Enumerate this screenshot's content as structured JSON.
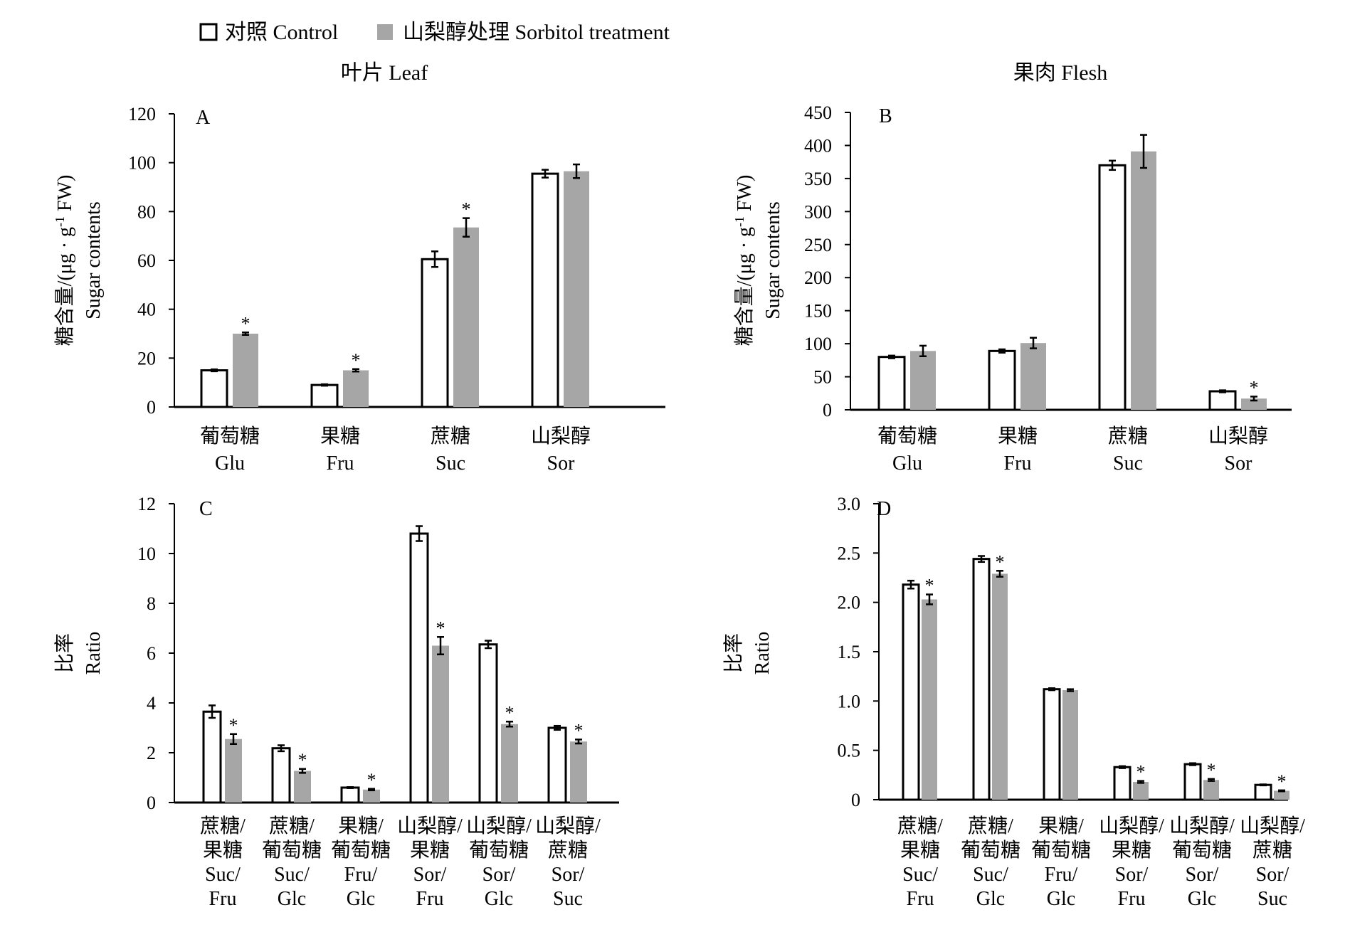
{
  "legend": {
    "control_label": "对照 Control",
    "treatment_label": "山梨醇处理 Sorbitol treatment"
  },
  "colors": {
    "control_fill": "#ffffff",
    "treatment_fill": "#a6a6a6",
    "axis": "#000000"
  },
  "chart_data": [
    {
      "id": "A",
      "type": "bar",
      "title": "叶片 Leaf",
      "panel_label": "A",
      "ylabel_cn": "糖含量/(μg · g",
      "ylabel_sup": "-1",
      "ylabel_tail": " FW)",
      "ylabel_en": "Sugar contents",
      "ylim": [
        0,
        120
      ],
      "yticks": [
        "0",
        "20",
        "40",
        "60",
        "80",
        "100",
        "120"
      ],
      "categories": [
        {
          "lines": [
            "葡萄糖",
            "Glu"
          ]
        },
        {
          "lines": [
            "果糖",
            "Fru"
          ]
        },
        {
          "lines": [
            "蔗糖",
            "Suc"
          ]
        },
        {
          "lines": [
            "山梨醇",
            "Sor"
          ]
        }
      ],
      "series": [
        {
          "name": "对照 Control",
          "values": [
            15,
            9,
            60.5,
            95.5
          ],
          "errors": [
            0.4,
            0.3,
            3.2,
            1.6
          ],
          "sig": [
            false,
            false,
            false,
            false
          ]
        },
        {
          "name": "山梨醇处理 Sorbitol treatment",
          "values": [
            30,
            15,
            73.5,
            96.5
          ],
          "errors": [
            0.5,
            0.5,
            3.8,
            2.8
          ],
          "sig": [
            true,
            true,
            true,
            false
          ]
        }
      ]
    },
    {
      "id": "B",
      "type": "bar",
      "title": "果肉 Flesh",
      "panel_label": "B",
      "ylabel_cn": "糖含量/(μg · g",
      "ylabel_sup": "-1",
      "ylabel_tail": " FW)",
      "ylabel_en": "Sugar contents",
      "ylim": [
        0,
        450
      ],
      "yticks": [
        "0",
        "50",
        "100",
        "150",
        "200",
        "250",
        "300",
        "350",
        "400",
        "450"
      ],
      "categories": [
        {
          "lines": [
            "葡萄糖",
            "Glu"
          ]
        },
        {
          "lines": [
            "果糖",
            "Fru"
          ]
        },
        {
          "lines": [
            "蔗糖",
            "Suc"
          ]
        },
        {
          "lines": [
            "山梨醇",
            "Sor"
          ]
        }
      ],
      "series": [
        {
          "name": "对照 Control",
          "values": [
            80,
            89,
            370,
            28
          ],
          "errors": [
            2,
            2.5,
            7,
            1.5
          ],
          "sig": [
            false,
            false,
            false,
            false
          ]
        },
        {
          "name": "山梨醇处理 Sorbitol treatment",
          "values": [
            89,
            101,
            391,
            17
          ],
          "errors": [
            8,
            8,
            25,
            3
          ],
          "sig": [
            false,
            false,
            false,
            true
          ]
        }
      ]
    },
    {
      "id": "C",
      "type": "bar",
      "title": "",
      "panel_label": "C",
      "ylabel_cn": "比率",
      "ylabel_sup": "",
      "ylabel_tail": "",
      "ylabel_en": "Ratio",
      "ylim": [
        0,
        12
      ],
      "yticks": [
        "0",
        "2",
        "4",
        "6",
        "8",
        "10",
        "12"
      ],
      "categories": [
        {
          "lines": [
            "蔗糖/",
            "果糖",
            "Suc/",
            "Fru"
          ]
        },
        {
          "lines": [
            "蔗糖/",
            "葡萄糖",
            "Suc/",
            "Glc"
          ]
        },
        {
          "lines": [
            "果糖/",
            "葡萄糖",
            "Fru/",
            "Glc"
          ]
        },
        {
          "lines": [
            "山梨醇/",
            "果糖",
            "Sor/",
            "Fru"
          ]
        },
        {
          "lines": [
            "山梨醇/",
            "葡萄糖",
            "Sor/",
            "Glc"
          ]
        },
        {
          "lines": [
            "山梨醇/",
            "蔗糖",
            "Sor/",
            "Suc"
          ]
        }
      ],
      "series": [
        {
          "name": "对照 Control",
          "values": [
            3.65,
            2.18,
            0.6,
            10.8,
            6.35,
            3.0
          ],
          "errors": [
            0.25,
            0.12,
            0.02,
            0.3,
            0.15,
            0.08
          ],
          "sig": [
            false,
            false,
            false,
            false,
            false,
            false
          ]
        },
        {
          "name": "山梨醇处理 Sorbitol treatment",
          "values": [
            2.55,
            1.27,
            0.52,
            6.3,
            3.15,
            2.45
          ],
          "errors": [
            0.2,
            0.08,
            0.03,
            0.35,
            0.1,
            0.08
          ],
          "sig": [
            true,
            true,
            true,
            true,
            true,
            true
          ]
        }
      ]
    },
    {
      "id": "D",
      "type": "bar",
      "title": "",
      "panel_label": "D",
      "ylabel_cn": "比率",
      "ylabel_sup": "",
      "ylabel_tail": "",
      "ylabel_en": "Ratio",
      "ylim": [
        0,
        3.0
      ],
      "yticks": [
        "0",
        "0.5",
        "1.0",
        "1.5",
        "2.0",
        "2.5",
        "3.0"
      ],
      "categories": [
        {
          "lines": [
            "蔗糖/",
            "果糖",
            "Suc/",
            "Fru"
          ]
        },
        {
          "lines": [
            "蔗糖/",
            "葡萄糖",
            "Suc/",
            "Glc"
          ]
        },
        {
          "lines": [
            "果糖/",
            "葡萄糖",
            "Fru/",
            "Glc"
          ]
        },
        {
          "lines": [
            "山梨醇/",
            "果糖",
            "Sor/",
            "Fru"
          ]
        },
        {
          "lines": [
            "山梨醇/",
            "葡萄糖",
            "Sor/",
            "Glc"
          ]
        },
        {
          "lines": [
            "山梨醇/",
            "蔗糖",
            "Sor/",
            "Suc"
          ]
        }
      ],
      "series": [
        {
          "name": "对照 Control",
          "values": [
            2.18,
            2.44,
            1.12,
            0.33,
            0.36,
            0.15
          ],
          "errors": [
            0.04,
            0.03,
            0.01,
            0.01,
            0.01,
            0.005
          ],
          "sig": [
            false,
            false,
            false,
            false,
            false,
            false
          ]
        },
        {
          "name": "山梨醇处理 Sorbitol treatment",
          "values": [
            2.03,
            2.29,
            1.11,
            0.18,
            0.2,
            0.09
          ],
          "errors": [
            0.05,
            0.03,
            0.01,
            0.01,
            0.01,
            0.005
          ],
          "sig": [
            true,
            true,
            false,
            true,
            true,
            true
          ]
        }
      ]
    }
  ]
}
